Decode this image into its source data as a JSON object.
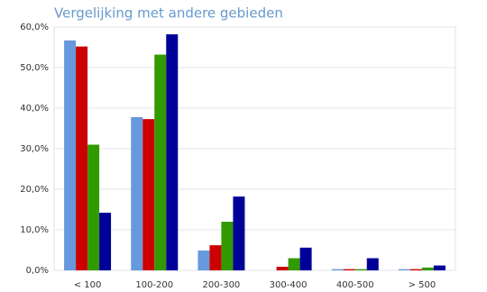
{
  "chart_data": {
    "type": "bar",
    "title": "Vergelijking met andere gebieden",
    "categories": [
      "< 100",
      "100-200",
      "200-300",
      "300-400",
      "400-500",
      "> 500"
    ],
    "series": [
      {
        "color": "#6699dd",
        "values": [
          56.7,
          37.8,
          4.9,
          0,
          0.3,
          0.3
        ]
      },
      {
        "color": "#cc0000",
        "values": [
          55.2,
          37.3,
          6.2,
          0.9,
          0.3,
          0.3
        ]
      },
      {
        "color": "#339900",
        "values": [
          31,
          53.2,
          12,
          3,
          0.3,
          0.7
        ]
      },
      {
        "color": "#000099",
        "values": [
          14.2,
          58.2,
          18.2,
          5.6,
          3,
          1.2
        ]
      }
    ],
    "ylim": [
      0,
      60
    ],
    "yticks": [
      {
        "value": 0,
        "label": "0,0%"
      },
      {
        "value": 10,
        "label": "10,0%"
      },
      {
        "value": 20,
        "label": "20,0%"
      },
      {
        "value": 30,
        "label": "30,0%"
      },
      {
        "value": 40,
        "label": "40,0%"
      },
      {
        "value": 50,
        "label": "50,0%"
      },
      {
        "value": 60,
        "label": "60,0%"
      }
    ],
    "grid": true
  }
}
